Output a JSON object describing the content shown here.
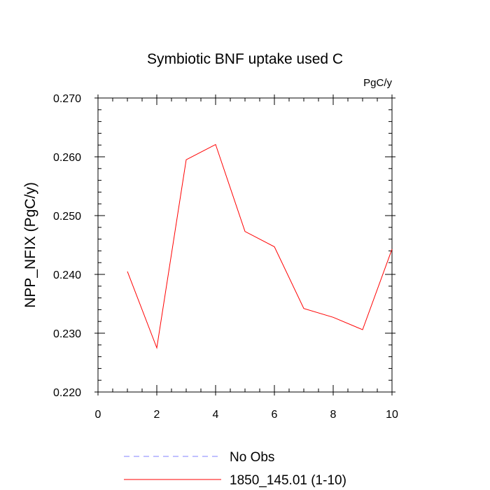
{
  "chart_data": {
    "type": "line",
    "title": "Symbiotic BNF uptake used C",
    "units_label": "PgC/y",
    "ylabel": "NPP_NFIX  (PgC/y)",
    "xlabel": "",
    "xlim": [
      0,
      10
    ],
    "ylim": [
      0.22,
      0.27
    ],
    "x_ticks": [
      "0",
      "2",
      "4",
      "6",
      "8",
      "10"
    ],
    "y_ticks": [
      "0.220",
      "0.230",
      "0.240",
      "0.250",
      "0.260",
      "0.270"
    ],
    "grid": false,
    "legend_position": "bottom",
    "series": [
      {
        "name": "No Obs",
        "color": "#8080ff",
        "dashed": true,
        "x": [],
        "y": []
      },
      {
        "name": "1850_145.01 (1-10)",
        "color": "#ff0000",
        "dashed": false,
        "x": [
          1,
          2,
          3,
          4,
          5,
          6,
          7,
          8,
          9,
          10
        ],
        "y": [
          0.2405,
          0.2275,
          0.2595,
          0.2621,
          0.2473,
          0.2447,
          0.2342,
          0.2327,
          0.2306,
          0.2443
        ]
      }
    ]
  }
}
